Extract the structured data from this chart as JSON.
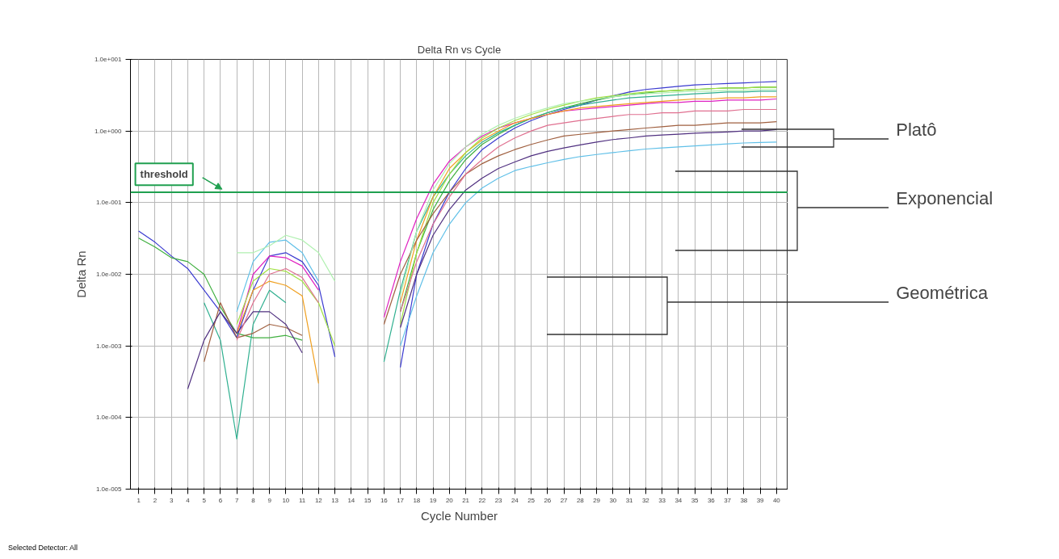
{
  "chart_data": {
    "type": "line",
    "title": "Delta Rn vs Cycle",
    "xlabel": "Cycle Number",
    "ylabel": "Delta Rn",
    "x": [
      1,
      2,
      3,
      4,
      5,
      6,
      7,
      8,
      9,
      10,
      11,
      12,
      13,
      14,
      15,
      16,
      17,
      18,
      19,
      20,
      21,
      22,
      23,
      24,
      25,
      26,
      27,
      28,
      29,
      30,
      31,
      32,
      33,
      34,
      35,
      36,
      37,
      38,
      39,
      40
    ],
    "series": [
      {
        "color": "#3a3ad0",
        "values": [
          0.04,
          0.028,
          0.018,
          0.012,
          0.006,
          0.003,
          0.0013,
          0.006,
          0.018,
          0.02,
          0.015,
          0.007,
          0.0007,
          null,
          null,
          null,
          0.0005,
          0.01,
          0.05,
          0.14,
          0.3,
          0.55,
          0.8,
          1.1,
          1.4,
          1.7,
          2.0,
          2.3,
          2.7,
          3.1,
          3.5,
          3.8,
          4.0,
          4.2,
          4.4,
          4.5,
          4.6,
          4.7,
          4.8,
          4.9
        ]
      },
      {
        "color": "#40b040",
        "values": [
          0.032,
          0.024,
          0.017,
          0.015,
          0.01,
          0.0035,
          0.0015,
          0.0013,
          0.0013,
          0.0014,
          0.0012,
          null,
          null,
          null,
          null,
          null,
          0.003,
          0.02,
          0.08,
          0.2,
          0.4,
          0.65,
          0.9,
          1.2,
          1.5,
          1.8,
          2.1,
          2.4,
          2.7,
          3.0,
          3.2,
          3.4,
          3.6,
          3.7,
          3.8,
          3.9,
          4.0,
          4.0,
          4.1,
          4.1
        ]
      },
      {
        "color": "#e020c0",
        "values": [
          null,
          null,
          null,
          null,
          null,
          null,
          0.0015,
          0.01,
          0.018,
          0.017,
          0.013,
          0.006,
          null,
          null,
          null,
          0.0025,
          0.015,
          0.06,
          0.18,
          0.38,
          0.6,
          0.85,
          1.1,
          1.3,
          1.5,
          1.7,
          1.9,
          2.0,
          2.1,
          2.2,
          2.3,
          2.4,
          2.5,
          2.5,
          2.6,
          2.6,
          2.7,
          2.7,
          2.7,
          2.8
        ]
      },
      {
        "color": "#30b090",
        "values": [
          null,
          null,
          null,
          null,
          0.004,
          0.0012,
          5e-05,
          0.002,
          0.006,
          0.004,
          null,
          null,
          null,
          null,
          null,
          0.0006,
          0.006,
          0.04,
          0.12,
          0.25,
          0.45,
          0.7,
          0.95,
          1.2,
          1.5,
          1.8,
          2.1,
          2.3,
          2.5,
          2.7,
          2.9,
          3.0,
          3.1,
          3.2,
          3.3,
          3.4,
          3.5,
          3.5,
          3.6,
          3.6
        ]
      },
      {
        "color": "#f0a020",
        "values": [
          null,
          null,
          null,
          null,
          null,
          null,
          0.0015,
          0.006,
          0.008,
          0.007,
          0.005,
          0.0003,
          null,
          null,
          null,
          null,
          0.004,
          0.03,
          0.12,
          0.3,
          0.5,
          0.75,
          1.0,
          1.3,
          1.5,
          1.7,
          1.9,
          2.1,
          2.2,
          2.3,
          2.4,
          2.5,
          2.6,
          2.7,
          2.8,
          2.8,
          2.9,
          2.9,
          3.0,
          3.0
        ]
      },
      {
        "color": "#a0e040",
        "values": [
          null,
          null,
          null,
          null,
          null,
          null,
          0.002,
          0.008,
          0.012,
          0.011,
          0.008,
          0.004,
          0.001,
          null,
          null,
          null,
          0.002,
          0.02,
          0.1,
          0.25,
          0.5,
          0.8,
          1.1,
          1.4,
          1.7,
          2.0,
          2.3,
          2.6,
          2.9,
          3.1,
          3.3,
          3.5,
          3.6,
          3.7,
          3.8,
          3.9,
          4.0,
          4.0,
          4.1,
          4.1
        ]
      },
      {
        "color": "#a06040",
        "values": [
          null,
          null,
          null,
          null,
          0.0006,
          0.004,
          0.0013,
          0.0015,
          0.002,
          0.0018,
          0.0014,
          null,
          null,
          null,
          null,
          0.002,
          0.01,
          0.03,
          0.07,
          0.14,
          0.25,
          0.35,
          0.45,
          0.55,
          0.65,
          0.75,
          0.85,
          0.9,
          0.95,
          1.0,
          1.05,
          1.1,
          1.15,
          1.2,
          1.2,
          1.25,
          1.3,
          1.3,
          1.3,
          1.35
        ]
      },
      {
        "color": "#60c0e8",
        "values": [
          null,
          null,
          null,
          null,
          null,
          null,
          0.003,
          0.015,
          0.028,
          0.03,
          0.02,
          0.008,
          null,
          null,
          null,
          null,
          0.001,
          0.005,
          0.02,
          0.05,
          0.1,
          0.16,
          0.22,
          0.28,
          0.32,
          0.36,
          0.4,
          0.44,
          0.47,
          0.5,
          0.53,
          0.56,
          0.58,
          0.6,
          0.62,
          0.64,
          0.66,
          0.68,
          0.69,
          0.7
        ]
      },
      {
        "color": "#503080",
        "values": [
          null,
          null,
          null,
          0.00025,
          0.0012,
          0.003,
          0.0015,
          0.003,
          0.003,
          0.002,
          0.0008,
          null,
          null,
          null,
          null,
          null,
          0.0018,
          0.01,
          0.035,
          0.08,
          0.15,
          0.22,
          0.3,
          0.37,
          0.45,
          0.52,
          0.58,
          0.64,
          0.7,
          0.76,
          0.8,
          0.85,
          0.88,
          0.9,
          0.93,
          0.95,
          0.97,
          1.0,
          1.0,
          1.05
        ]
      },
      {
        "color": "#e07090",
        "values": [
          null,
          null,
          null,
          null,
          null,
          null,
          0.0012,
          0.004,
          0.01,
          0.012,
          0.009,
          0.004,
          null,
          null,
          null,
          null,
          0.003,
          0.015,
          0.05,
          0.12,
          0.25,
          0.4,
          0.6,
          0.8,
          1.0,
          1.2,
          1.3,
          1.4,
          1.5,
          1.6,
          1.7,
          1.7,
          1.8,
          1.8,
          1.9,
          1.9,
          1.9,
          2.0,
          2.0,
          2.0
        ]
      },
      {
        "color": "#b0f0b0",
        "values": [
          null,
          null,
          null,
          null,
          null,
          null,
          0.02,
          0.02,
          0.025,
          0.035,
          0.03,
          0.02,
          0.008,
          null,
          null,
          null,
          0.005,
          0.04,
          0.15,
          0.35,
          0.6,
          0.9,
          1.2,
          1.5,
          1.8,
          2.1,
          2.4,
          2.6,
          2.8,
          3.0,
          3.2,
          3.3,
          3.4,
          3.5,
          3.6,
          3.6,
          3.7,
          3.7,
          3.8,
          3.8
        ]
      }
    ],
    "log": "y",
    "grid": true,
    "xlim": [
      0.5,
      40.7
    ],
    "xticks": [
      1,
      2,
      3,
      4,
      5,
      6,
      7,
      8,
      9,
      10,
      11,
      12,
      13,
      14,
      15,
      16,
      17,
      18,
      19,
      20,
      21,
      22,
      23,
      24,
      25,
      26,
      27,
      28,
      29,
      30,
      31,
      32,
      33,
      34,
      35,
      36,
      37,
      38,
      39,
      40
    ],
    "ylim": [
      1e-05,
      10
    ],
    "yticks": [
      {
        "value": 1e-05,
        "label": "1.0e-005"
      },
      {
        "value": 0.0001,
        "label": "1.0e-004"
      },
      {
        "value": 0.001,
        "label": "1.0e-003"
      },
      {
        "value": 0.01,
        "label": "1.0e-002"
      },
      {
        "value": 0.1,
        "label": "1.0e-001"
      },
      {
        "value": 1,
        "label": "1.0e+000"
      },
      {
        "value": 10,
        "label": "1.0e+001"
      }
    ],
    "ref_lines": [
      {
        "axis": "y",
        "value": 0.14,
        "label": "threshold",
        "color": "#20a050"
      }
    ],
    "annotations": [
      "Platô",
      "Exponencial",
      "Geométrica",
      "Selected Detector: All"
    ]
  }
}
